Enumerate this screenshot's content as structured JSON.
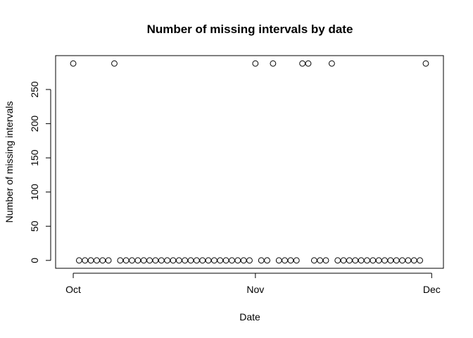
{
  "chart_data": {
    "type": "scatter",
    "title": "Number of missing intervals by date",
    "xlabel": "Date",
    "ylabel": "Number of missing intervals",
    "x_start": "2012-10-01",
    "x": [
      "2012-10-01",
      "2012-10-02",
      "2012-10-03",
      "2012-10-04",
      "2012-10-05",
      "2012-10-06",
      "2012-10-07",
      "2012-10-08",
      "2012-10-09",
      "2012-10-10",
      "2012-10-11",
      "2012-10-12",
      "2012-10-13",
      "2012-10-14",
      "2012-10-15",
      "2012-10-16",
      "2012-10-17",
      "2012-10-18",
      "2012-10-19",
      "2012-10-20",
      "2012-10-21",
      "2012-10-22",
      "2012-10-23",
      "2012-10-24",
      "2012-10-25",
      "2012-10-26",
      "2012-10-27",
      "2012-10-28",
      "2012-10-29",
      "2012-10-30",
      "2012-10-31",
      "2012-11-01",
      "2012-11-02",
      "2012-11-03",
      "2012-11-04",
      "2012-11-05",
      "2012-11-06",
      "2012-11-07",
      "2012-11-08",
      "2012-11-09",
      "2012-11-10",
      "2012-11-11",
      "2012-11-12",
      "2012-11-13",
      "2012-11-14",
      "2012-11-15",
      "2012-11-16",
      "2012-11-17",
      "2012-11-18",
      "2012-11-19",
      "2012-11-20",
      "2012-11-21",
      "2012-11-22",
      "2012-11-23",
      "2012-11-24",
      "2012-11-25",
      "2012-11-26",
      "2012-11-27",
      "2012-11-28",
      "2012-11-29",
      "2012-11-30"
    ],
    "values": [
      288,
      0,
      0,
      0,
      0,
      0,
      0,
      288,
      0,
      0,
      0,
      0,
      0,
      0,
      0,
      0,
      0,
      0,
      0,
      0,
      0,
      0,
      0,
      0,
      0,
      0,
      0,
      0,
      0,
      0,
      0,
      288,
      0,
      0,
      288,
      0,
      0,
      0,
      0,
      288,
      288,
      0,
      0,
      0,
      288,
      0,
      0,
      0,
      0,
      0,
      0,
      0,
      0,
      0,
      0,
      0,
      0,
      0,
      0,
      0,
      288
    ],
    "x_ticks": [
      {
        "label": "Oct",
        "date": "2012-10-01"
      },
      {
        "label": "Nov",
        "date": "2012-11-01"
      },
      {
        "label": "Dec",
        "date": "2012-12-01"
      }
    ],
    "y_ticks": [
      0,
      50,
      100,
      150,
      200,
      250
    ],
    "xlim": [
      "2012-09-28",
      "2012-12-03"
    ],
    "ylim": [
      -11.52,
      299.52
    ],
    "grid": false,
    "marker": "open-circle",
    "colors": {
      "marker": "#000000",
      "background": "#ffffff"
    }
  }
}
